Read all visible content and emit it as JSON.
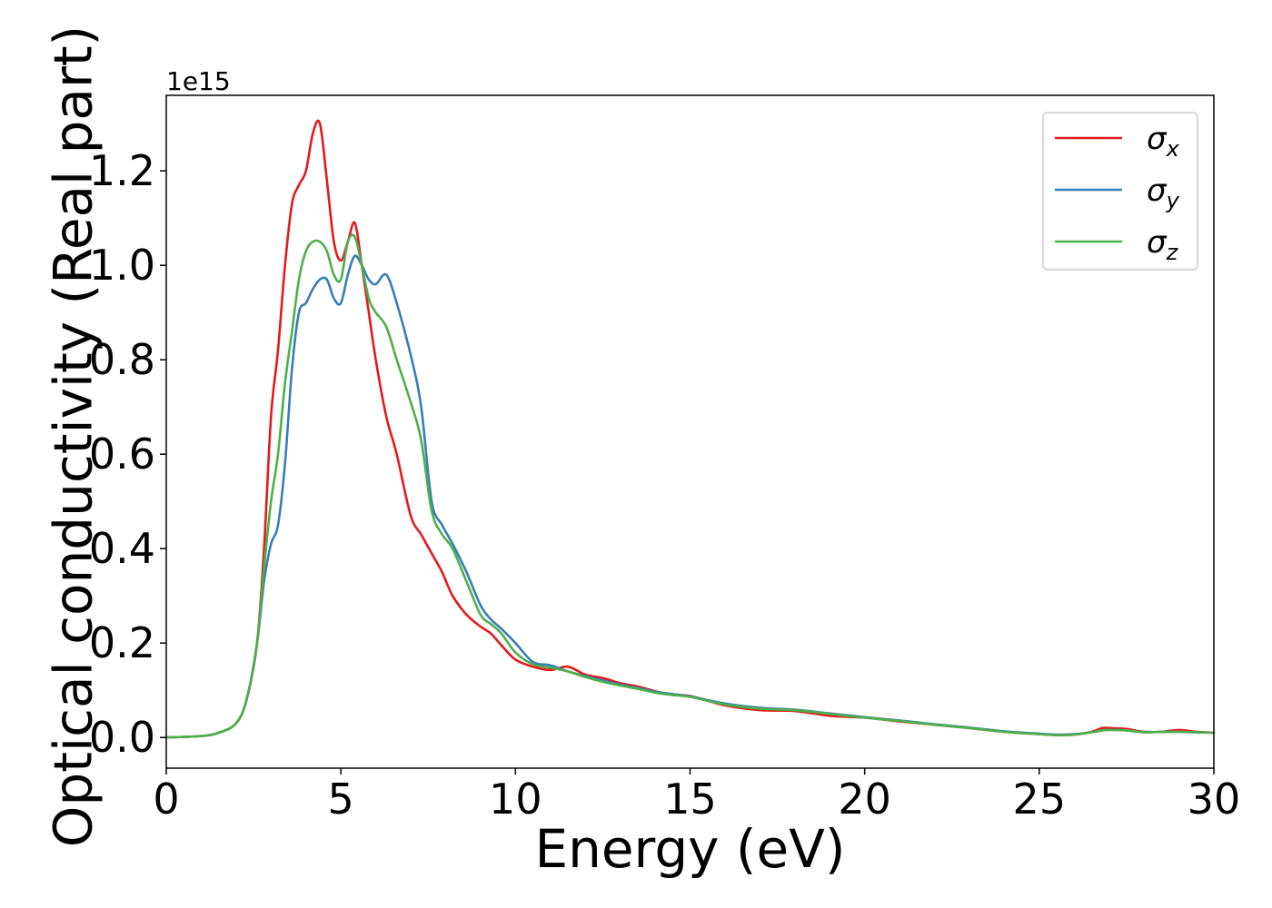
{
  "chart_data": {
    "type": "line",
    "xlabel": "Energy (eV)",
    "ylabel": "Optical conductivity (Real part)",
    "y_offset_text": "1e15",
    "y_scale_factor": 1000000000000000.0,
    "xlim": [
      0,
      30
    ],
    "ylim": [
      -0.065,
      1.36
    ],
    "x_ticks": [
      0,
      5,
      10,
      15,
      20,
      25,
      30
    ],
    "x_tick_labels": [
      "0",
      "5",
      "10",
      "15",
      "20",
      "25",
      "30"
    ],
    "y_ticks": [
      0.0,
      0.2,
      0.4,
      0.6,
      0.8,
      1.0,
      1.2
    ],
    "y_tick_labels": [
      "0.0",
      "0.2",
      "0.4",
      "0.6",
      "0.8",
      "1.0",
      "1.2"
    ],
    "grid": false,
    "legend_position": "top-right",
    "series": [
      {
        "name": "σx",
        "symbol": "σ",
        "subscript": "x",
        "color": "#e41a1c",
        "x": [
          0,
          1,
          1.5,
          2,
          2.3,
          2.6,
          2.8,
          3.0,
          3.2,
          3.4,
          3.6,
          3.8,
          4.0,
          4.2,
          4.4,
          4.6,
          4.8,
          5.0,
          5.2,
          5.4,
          5.6,
          5.8,
          6.0,
          6.3,
          6.6,
          7.0,
          7.3,
          7.6,
          7.9,
          8.2,
          8.6,
          9.0,
          9.3,
          9.6,
          10.0,
          10.5,
          11.0,
          11.5,
          12.0,
          12.5,
          13.0,
          13.5,
          14.0,
          14.5,
          15,
          16,
          17,
          18,
          19,
          20,
          21,
          22,
          23,
          24,
          25,
          25.5,
          26,
          26.5,
          26.8,
          27,
          27.5,
          28,
          28.5,
          29,
          29.5,
          30
        ],
        "values": [
          0.0,
          0.003,
          0.01,
          0.03,
          0.08,
          0.2,
          0.4,
          0.68,
          0.82,
          1.0,
          1.13,
          1.17,
          1.2,
          1.28,
          1.3,
          1.18,
          1.05,
          1.01,
          1.05,
          1.09,
          1.0,
          0.9,
          0.8,
          0.68,
          0.6,
          0.47,
          0.43,
          0.39,
          0.35,
          0.3,
          0.26,
          0.235,
          0.22,
          0.195,
          0.165,
          0.15,
          0.143,
          0.15,
          0.133,
          0.126,
          0.115,
          0.108,
          0.098,
          0.09,
          0.088,
          0.068,
          0.058,
          0.056,
          0.046,
          0.042,
          0.034,
          0.027,
          0.02,
          0.012,
          0.007,
          0.005,
          0.006,
          0.012,
          0.02,
          0.02,
          0.018,
          0.012,
          0.012,
          0.016,
          0.012,
          0.01
        ]
      },
      {
        "name": "σy",
        "symbol": "σ",
        "subscript": "y",
        "color": "#377eb8",
        "x": [
          0,
          1,
          1.5,
          2,
          2.3,
          2.6,
          2.8,
          3.0,
          3.2,
          3.4,
          3.6,
          3.8,
          4.0,
          4.2,
          4.4,
          4.6,
          4.8,
          5.0,
          5.2,
          5.4,
          5.6,
          5.8,
          6.0,
          6.3,
          6.6,
          7.0,
          7.3,
          7.6,
          7.9,
          8.2,
          8.6,
          9.0,
          9.3,
          9.6,
          10.0,
          10.5,
          11.0,
          11.5,
          12.0,
          12.5,
          13.0,
          13.5,
          14.0,
          14.5,
          15,
          16,
          17,
          18,
          19,
          20,
          21,
          22,
          23,
          24,
          25,
          25.5,
          26,
          26.5,
          26.8,
          27,
          27.5,
          28,
          28.5,
          29,
          29.5,
          30
        ],
        "values": [
          0.0,
          0.003,
          0.01,
          0.03,
          0.08,
          0.2,
          0.33,
          0.41,
          0.45,
          0.58,
          0.78,
          0.9,
          0.92,
          0.95,
          0.97,
          0.97,
          0.93,
          0.92,
          0.98,
          1.02,
          1.0,
          0.97,
          0.96,
          0.98,
          0.92,
          0.81,
          0.7,
          0.5,
          0.45,
          0.41,
          0.35,
          0.28,
          0.25,
          0.23,
          0.2,
          0.16,
          0.153,
          0.14,
          0.13,
          0.121,
          0.112,
          0.105,
          0.097,
          0.092,
          0.087,
          0.072,
          0.063,
          0.059,
          0.051,
          0.043,
          0.036,
          0.028,
          0.021,
          0.013,
          0.008,
          0.006,
          0.007,
          0.011,
          0.015,
          0.016,
          0.015,
          0.011,
          0.012,
          0.012,
          0.011,
          0.01
        ]
      },
      {
        "name": "σz",
        "symbol": "σ",
        "subscript": "z",
        "color": "#4daf4a",
        "x": [
          0,
          1,
          1.5,
          2,
          2.3,
          2.6,
          2.8,
          3.0,
          3.2,
          3.4,
          3.6,
          3.8,
          4.0,
          4.2,
          4.4,
          4.6,
          4.8,
          5.0,
          5.2,
          5.4,
          5.6,
          5.8,
          6.0,
          6.3,
          6.6,
          7.0,
          7.3,
          7.6,
          7.9,
          8.2,
          8.6,
          9.0,
          9.3,
          9.6,
          10.0,
          10.5,
          11.0,
          11.5,
          12.0,
          12.5,
          13.0,
          13.5,
          14.0,
          14.5,
          15,
          16,
          17,
          18,
          19,
          20,
          21,
          22,
          23,
          24,
          25,
          25.5,
          26,
          26.5,
          26.8,
          27,
          27.5,
          28,
          28.5,
          29,
          29.5,
          30
        ],
        "values": [
          0.0,
          0.003,
          0.01,
          0.03,
          0.08,
          0.2,
          0.36,
          0.5,
          0.6,
          0.75,
          0.86,
          0.97,
          1.03,
          1.05,
          1.05,
          1.03,
          0.98,
          0.97,
          1.05,
          1.06,
          1.0,
          0.93,
          0.9,
          0.87,
          0.8,
          0.71,
          0.63,
          0.48,
          0.43,
          0.4,
          0.33,
          0.26,
          0.24,
          0.22,
          0.18,
          0.155,
          0.148,
          0.14,
          0.128,
          0.118,
          0.11,
          0.103,
          0.095,
          0.09,
          0.086,
          0.07,
          0.061,
          0.058,
          0.05,
          0.042,
          0.035,
          0.027,
          0.02,
          0.012,
          0.007,
          0.005,
          0.006,
          0.011,
          0.015,
          0.016,
          0.015,
          0.011,
          0.012,
          0.012,
          0.011,
          0.01
        ]
      }
    ]
  }
}
